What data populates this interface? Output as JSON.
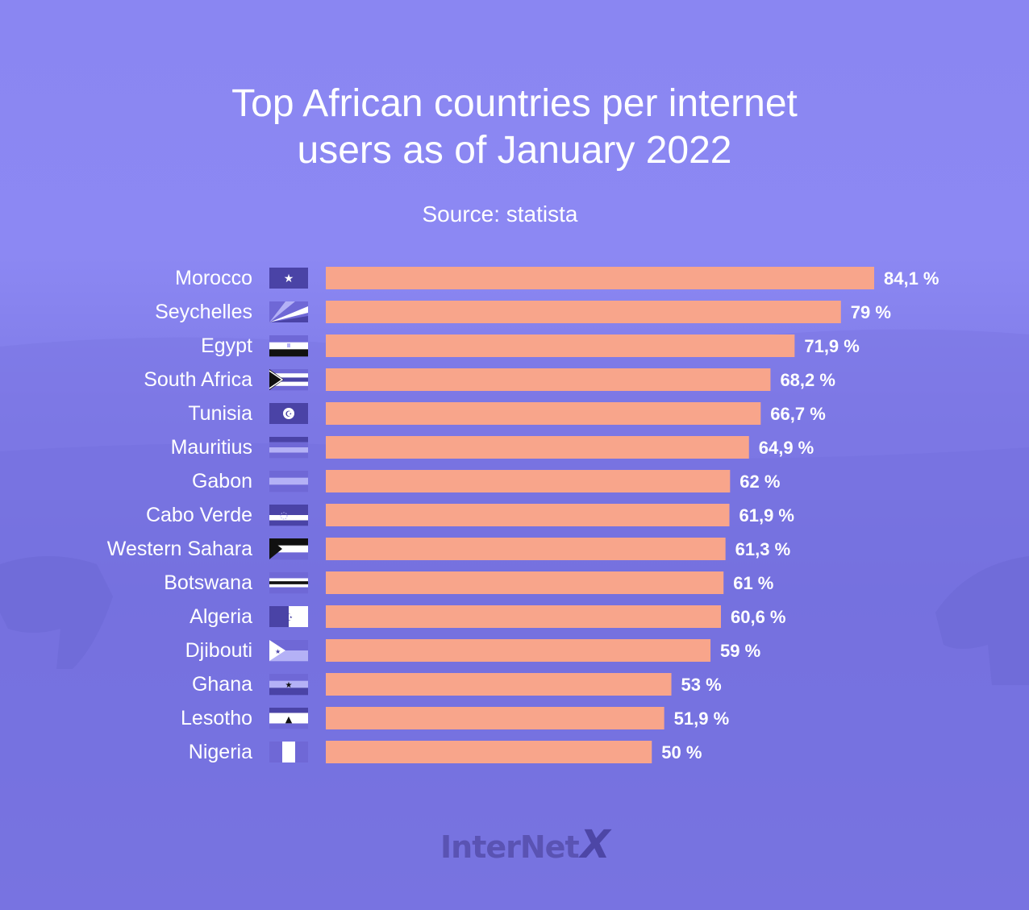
{
  "chart_data": {
    "type": "bar",
    "orientation": "horizontal",
    "title_lines": [
      "Top African countries per internet",
      "users as of January 2022"
    ],
    "subtitle": "Source: statista",
    "categories": [
      "Morocco",
      "Seychelles",
      "Egypt",
      "South Africa",
      "Tunisia",
      "Mauritius",
      "Gabon",
      "Cabo Verde",
      "Western Sahara",
      "Botswana",
      "Algeria",
      "Djibouti",
      "Ghana",
      "Lesotho",
      "Nigeria"
    ],
    "values": [
      84.1,
      79,
      71.9,
      68.2,
      66.7,
      64.9,
      62,
      61.9,
      61.3,
      61,
      60.6,
      59,
      53,
      51.9,
      50
    ],
    "value_labels": [
      "84,1 %",
      "79 %",
      "71,9 %",
      "68,2 %",
      "66,7 %",
      "64,9 %",
      "62 %",
      "61,9 %",
      "61,3 %",
      "61 %",
      "60,6 %",
      "59 %",
      "53 %",
      "51,9 %",
      "50 %"
    ],
    "flags": [
      "morocco-flag-icon",
      "seychelles-flag-icon",
      "egypt-flag-icon",
      "south-africa-flag-icon",
      "tunisia-flag-icon",
      "mauritius-flag-icon",
      "gabon-flag-icon",
      "cabo-verde-flag-icon",
      "western-sahara-flag-icon",
      "botswana-flag-icon",
      "algeria-flag-icon",
      "djibouti-flag-icon",
      "ghana-flag-icon",
      "lesotho-flag-icon",
      "nigeria-flag-icon"
    ],
    "xlim": [
      0,
      100
    ],
    "bar_color": "#f8a58b",
    "grid": false,
    "legend": "none"
  },
  "brand": {
    "logo_text": "InterNet",
    "logo_x": "X"
  },
  "colors": {
    "text": "#ffffff",
    "flag_dark": "#4a43a6",
    "flag_mid": "#6f68d6",
    "flag_light": "#b4b1f6"
  }
}
